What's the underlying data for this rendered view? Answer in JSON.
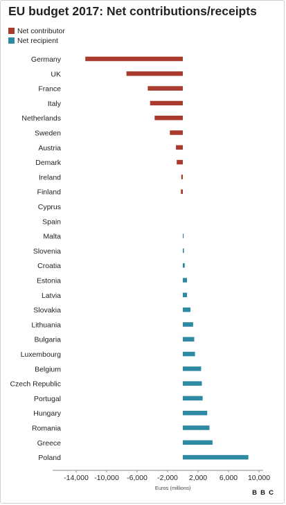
{
  "title": "EU budget 2017: Net contributions/receipts",
  "colors": {
    "contributor": "#a83a2e",
    "recipient": "#2e8aa3",
    "axis": "#888888",
    "text": "#222222"
  },
  "legend": [
    {
      "label": "Net contributor",
      "color": "#a83a2e"
    },
    {
      "label": "Net recipient",
      "color": "#2e8aa3"
    }
  ],
  "logo": {
    "letters": [
      "B",
      "B",
      "C"
    ]
  },
  "chart_data": {
    "type": "bar",
    "orientation": "horizontal",
    "title": "EU budget 2017: Net contributions/receipts",
    "xlabel": "Euros (millions)",
    "ylabel": "",
    "xlim": [
      -14000,
      10000
    ],
    "xticks": [
      -14000,
      -10000,
      -6000,
      -2000,
      2000,
      6000,
      10000
    ],
    "xtick_labels": [
      "-14,000",
      "-10,000",
      "-6,000",
      "-2,000",
      "2,000",
      "6,000",
      "10,000"
    ],
    "grid": false,
    "legend_position": "top-left",
    "categories": [
      "Germany",
      "UK",
      "France",
      "Italy",
      "Netherlands",
      "Sweden",
      "Austria",
      "Demark",
      "Ireland",
      "Finland",
      "Cyprus",
      "Spain",
      "Malta",
      "Slovenia",
      "Croatia",
      "Estonia",
      "Latvia",
      "Slovakia",
      "Lithuania",
      "Bulgaria",
      "Luxembourg",
      "Belgium",
      "Czech Republic",
      "Portugal",
      "Hungary",
      "Romania",
      "Greece",
      "Poland"
    ],
    "values": [
      -12800,
      -7400,
      -4600,
      -4300,
      -3700,
      -1700,
      -900,
      -800,
      -200,
      -250,
      0,
      0,
      100,
      150,
      250,
      550,
      550,
      1000,
      1350,
      1500,
      1600,
      2400,
      2500,
      2600,
      3200,
      3500,
      3900,
      8600
    ]
  }
}
